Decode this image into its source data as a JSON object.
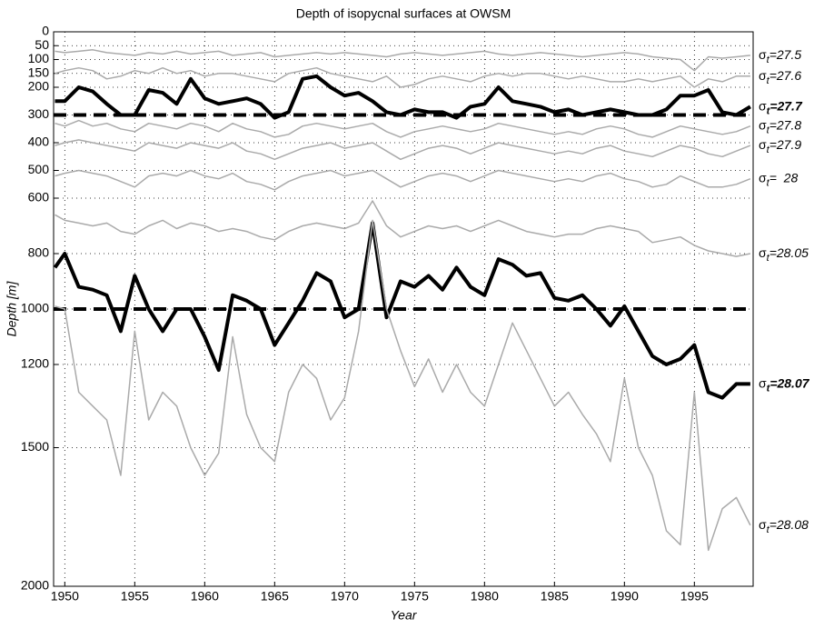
{
  "chart_data": {
    "type": "line",
    "title": "Depth of isopycnal surfaces at OWSM",
    "x_label": "Year",
    "y_label": "Depth [m]",
    "label_symbol": "σ",
    "label_subscript": "t",
    "xlim": [
      1949.2,
      1999.2
    ],
    "xticks": [
      1950,
      1955,
      1960,
      1965,
      1970,
      1975,
      1980,
      1985,
      1990,
      1995
    ],
    "ylim": [
      0,
      2000
    ],
    "y_inverted": true,
    "yticks": [
      0,
      50,
      100,
      150,
      200,
      300,
      400,
      500,
      600,
      800,
      1000,
      1200,
      1500,
      2000
    ],
    "grid": true,
    "reference_lines": [
      300,
      1000
    ],
    "x": [
      1949.3,
      1950,
      1951,
      1952,
      1953,
      1954,
      1955,
      1956,
      1957,
      1958,
      1959,
      1960,
      1961,
      1962,
      1963,
      1964,
      1965,
      1966,
      1967,
      1968,
      1969,
      1970,
      1971,
      1972,
      1973,
      1974,
      1975,
      1976,
      1977,
      1978,
      1979,
      1980,
      1981,
      1982,
      1983,
      1984,
      1985,
      1986,
      1987,
      1988,
      1989,
      1990,
      1991,
      1992,
      1993,
      1994,
      1995,
      1996,
      1997,
      1998,
      1999
    ],
    "series": [
      {
        "name": "=27.5",
        "color": "#aaaaaa",
        "line_width": 1.5,
        "bold": false,
        "values": [
          70,
          75,
          70,
          65,
          75,
          80,
          85,
          75,
          80,
          70,
          80,
          75,
          70,
          85,
          80,
          75,
          90,
          85,
          80,
          75,
          80,
          75,
          80,
          85,
          90,
          80,
          75,
          80,
          85,
          80,
          75,
          70,
          80,
          85,
          80,
          75,
          80,
          85,
          90,
          85,
          80,
          75,
          80,
          90,
          95,
          100,
          140,
          90,
          95,
          90,
          85
        ]
      },
      {
        "name": "=27.6",
        "color": "#aaaaaa",
        "line_width": 1.5,
        "bold": false,
        "values": [
          150,
          140,
          130,
          140,
          170,
          160,
          140,
          150,
          130,
          150,
          140,
          160,
          150,
          150,
          160,
          170,
          180,
          150,
          140,
          130,
          150,
          160,
          170,
          180,
          160,
          200,
          190,
          170,
          160,
          170,
          180,
          160,
          150,
          160,
          150,
          150,
          160,
          170,
          160,
          170,
          180,
          180,
          170,
          180,
          170,
          160,
          200,
          170,
          180,
          160,
          160
        ]
      },
      {
        "name": "=27.7",
        "color": "#000000",
        "line_width": 4,
        "bold": true,
        "values": [
          250,
          250,
          200,
          215,
          260,
          300,
          300,
          210,
          220,
          260,
          170,
          240,
          260,
          250,
          240,
          260,
          310,
          290,
          170,
          160,
          200,
          230,
          220,
          250,
          290,
          300,
          280,
          290,
          290,
          310,
          270,
          260,
          200,
          250,
          260,
          270,
          290,
          280,
          300,
          290,
          280,
          290,
          300,
          300,
          280,
          230,
          230,
          210,
          290,
          300,
          270
        ]
      },
      {
        "name": "=27.8",
        "color": "#aaaaaa",
        "line_width": 1.5,
        "bold": false,
        "values": [
          330,
          340,
          320,
          340,
          330,
          350,
          360,
          330,
          340,
          350,
          330,
          340,
          360,
          330,
          350,
          360,
          380,
          370,
          340,
          330,
          340,
          350,
          340,
          330,
          360,
          380,
          360,
          350,
          340,
          350,
          360,
          350,
          330,
          340,
          350,
          360,
          370,
          360,
          370,
          350,
          340,
          350,
          370,
          380,
          360,
          340,
          350,
          360,
          370,
          360,
          340
        ]
      },
      {
        "name": "=27.9",
        "color": "#aaaaaa",
        "line_width": 1.5,
        "bold": false,
        "values": [
          410,
          400,
          390,
          400,
          410,
          420,
          430,
          400,
          410,
          420,
          400,
          410,
          420,
          400,
          430,
          440,
          460,
          440,
          420,
          410,
          400,
          420,
          410,
          400,
          430,
          460,
          440,
          420,
          410,
          420,
          440,
          420,
          400,
          410,
          420,
          430,
          440,
          430,
          440,
          420,
          410,
          430,
          440,
          450,
          430,
          410,
          420,
          440,
          450,
          430,
          410
        ]
      },
      {
        "name": "=  28",
        "color": "#aaaaaa",
        "line_width": 1.5,
        "bold": false,
        "values": [
          520,
          510,
          500,
          510,
          520,
          540,
          560,
          520,
          510,
          520,
          500,
          520,
          530,
          510,
          540,
          550,
          570,
          540,
          520,
          510,
          500,
          520,
          510,
          500,
          530,
          560,
          540,
          520,
          510,
          520,
          540,
          520,
          500,
          510,
          520,
          530,
          540,
          530,
          540,
          520,
          510,
          530,
          540,
          560,
          550,
          520,
          540,
          560,
          560,
          550,
          530
        ]
      },
      {
        "name": "=28.05",
        "color": "#aaaaaa",
        "line_width": 1.5,
        "bold": false,
        "values": [
          660,
          680,
          690,
          700,
          690,
          720,
          730,
          700,
          680,
          710,
          690,
          700,
          720,
          710,
          720,
          740,
          750,
          720,
          700,
          690,
          700,
          710,
          690,
          610,
          700,
          740,
          720,
          700,
          710,
          700,
          720,
          700,
          680,
          700,
          720,
          730,
          740,
          730,
          730,
          710,
          700,
          710,
          720,
          760,
          750,
          740,
          770,
          790,
          800,
          810,
          800
        ]
      },
      {
        "name": "=28.07",
        "color": "#000000",
        "line_width": 4,
        "bold": true,
        "values": [
          850,
          800,
          920,
          930,
          950,
          1080,
          880,
          1000,
          1080,
          1000,
          1000,
          1100,
          1220,
          950,
          970,
          1000,
          1130,
          1050,
          970,
          870,
          900,
          1030,
          1000,
          690,
          1030,
          900,
          920,
          880,
          930,
          850,
          920,
          950,
          820,
          840,
          880,
          870,
          960,
          970,
          950,
          1000,
          1060,
          990,
          1080,
          1170,
          1200,
          1180,
          1130,
          1300,
          1320,
          1270,
          1270
        ]
      },
      {
        "name": "=28.08",
        "color": "#aaaaaa",
        "line_width": 1.5,
        "bold": false,
        "values": [
          990,
          1000,
          1300,
          1350,
          1400,
          1600,
          1080,
          1400,
          1300,
          1350,
          1500,
          1600,
          1520,
          1100,
          1380,
          1500,
          1550,
          1300,
          1200,
          1250,
          1400,
          1320,
          1080,
          680,
          1000,
          1150,
          1280,
          1180,
          1300,
          1200,
          1300,
          1350,
          1200,
          1050,
          1150,
          1250,
          1350,
          1300,
          1380,
          1450,
          1550,
          1250,
          1500,
          1600,
          1800,
          1850,
          1300,
          1870,
          1720,
          1680,
          1780
        ]
      }
    ]
  }
}
